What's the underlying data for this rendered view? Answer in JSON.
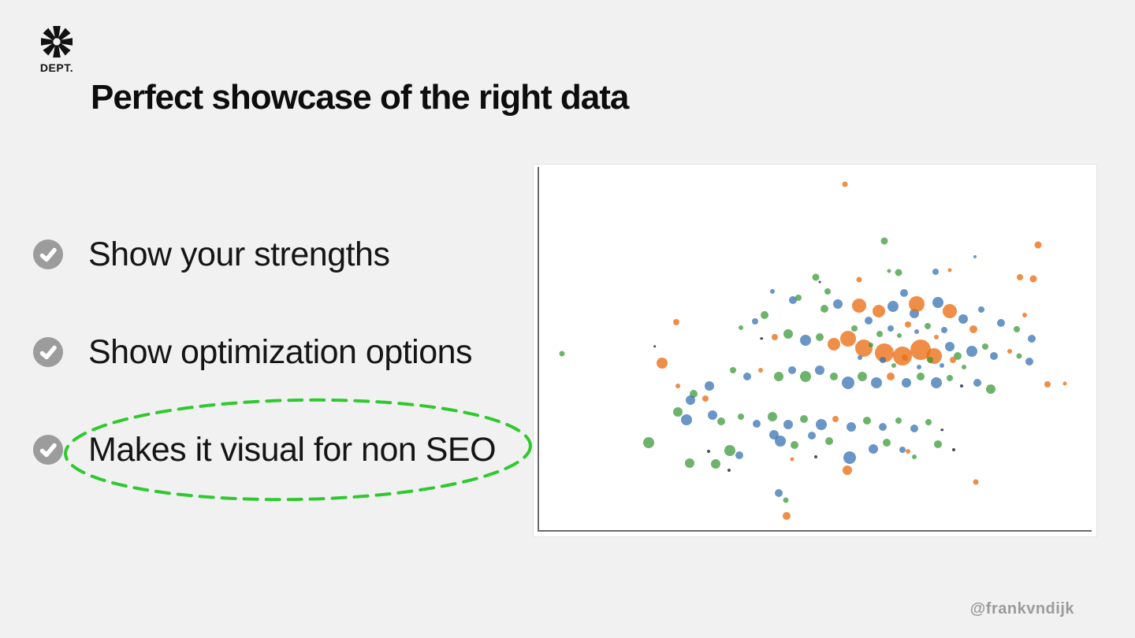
{
  "slide": {
    "background": "#f1f1f2",
    "logo": {
      "brand": "DEPT.",
      "icon": "dept-asterisk-star",
      "color": "#111111"
    },
    "title": "Perfect showcase of the right data",
    "bullets": [
      {
        "label": "Show your strengths",
        "checked": true,
        "highlighted": false
      },
      {
        "label": "Show optimization options",
        "checked": true,
        "highlighted": false
      },
      {
        "label": "Makes it visual for non SEO",
        "checked": true,
        "highlighted": true
      }
    ],
    "check_badge_color": "#9c9c9c",
    "highlight": {
      "shape": "hand-drawn-dashed-ellipse",
      "color": "#2fc92f"
    },
    "footer_handle": "@frankvndijk"
  },
  "chart_data": {
    "type": "scatter",
    "subtype": "bubble",
    "title": "",
    "xlabel": "",
    "ylabel": "",
    "ticks_visible": false,
    "grid": false,
    "frame": "left and bottom spines, white plot background",
    "x_range_pct": [
      0,
      100
    ],
    "y_range_pct": [
      0,
      100
    ],
    "series": [
      {
        "name": "blue",
        "color": "rgba(47,110,176,0.72)"
      },
      {
        "name": "orange",
        "color": "rgba(235,110,20,0.78)"
      },
      {
        "name": "green",
        "color": "rgba(52,150,50,0.72)"
      },
      {
        "name": "dark",
        "color": "rgba(40,45,60,0.85)"
      }
    ],
    "point_format": [
      "x_pct_from_left",
      "y_pct_from_top",
      "radius_px",
      "series_index"
    ],
    "points": [
      [
        55.3,
        5.3,
        3.5,
        1
      ],
      [
        5.0,
        50.8,
        3.5,
        2
      ],
      [
        89.7,
        21.7,
        4.5,
        1
      ],
      [
        86.4,
        30.2,
        4,
        1
      ],
      [
        88.8,
        30.8,
        4.5,
        1
      ],
      [
        78.5,
        24.7,
        2,
        0
      ],
      [
        94.4,
        59.0,
        2.5,
        1
      ],
      [
        66.5,
        77.2,
        3,
        1
      ],
      [
        78.6,
        85.4,
        3.5,
        1
      ],
      [
        45.0,
        94.5,
        5,
        1
      ],
      [
        43.6,
        88.4,
        5,
        0
      ],
      [
        44.8,
        90.3,
        3.5,
        2
      ],
      [
        62.3,
        20.5,
        4.5,
        2
      ],
      [
        20.4,
        74.7,
        7,
        2
      ],
      [
        25.3,
        42.4,
        4,
        1
      ],
      [
        22.8,
        53.4,
        7,
        1
      ],
      [
        21.5,
        48.9,
        1.8,
        3
      ],
      [
        50.1,
        30.4,
        4.5,
        2
      ],
      [
        57.8,
        31.0,
        3.5,
        1
      ],
      [
        64.9,
        29.1,
        4.5,
        2
      ],
      [
        63.1,
        28.5,
        2.5,
        2
      ],
      [
        71.4,
        28.9,
        4,
        0
      ],
      [
        74.0,
        28.3,
        2.5,
        1
      ],
      [
        65.8,
        34.6,
        5,
        0
      ],
      [
        52.2,
        34.2,
        4,
        2
      ],
      [
        42.5,
        34.2,
        3,
        0
      ],
      [
        50.8,
        31.6,
        1.5,
        3
      ],
      [
        46.1,
        36.5,
        5,
        0
      ],
      [
        47.1,
        35.9,
        4,
        2
      ],
      [
        57.8,
        38.0,
        9,
        1
      ],
      [
        61.3,
        39.5,
        8,
        1
      ],
      [
        54.1,
        37.6,
        6,
        0
      ],
      [
        51.7,
        38.8,
        5,
        2
      ],
      [
        63.8,
        38.2,
        7,
        0
      ],
      [
        67.6,
        40.1,
        6,
        0
      ],
      [
        68.0,
        37.6,
        10,
        1
      ],
      [
        71.8,
        37.1,
        7,
        0
      ],
      [
        73.9,
        39.5,
        9,
        1
      ],
      [
        76.3,
        41.6,
        6,
        0
      ],
      [
        78.1,
        44.3,
        5,
        1
      ],
      [
        79.5,
        39.0,
        4,
        0
      ],
      [
        41.1,
        40.5,
        5,
        2
      ],
      [
        39.4,
        42.2,
        4,
        0
      ],
      [
        36.9,
        43.9,
        3,
        2
      ],
      [
        40.5,
        46.8,
        1.8,
        3
      ],
      [
        42.9,
        46.4,
        4,
        1
      ],
      [
        45.3,
        45.6,
        6,
        2
      ],
      [
        48.3,
        47.3,
        7,
        0
      ],
      [
        50.8,
        46.4,
        5,
        2
      ],
      [
        53.4,
        48.3,
        8,
        1
      ],
      [
        55.9,
        46.8,
        10,
        1
      ],
      [
        58.7,
        49.4,
        11,
        1
      ],
      [
        62.3,
        50.6,
        12,
        1
      ],
      [
        65.6,
        51.5,
        12,
        1
      ],
      [
        68.7,
        49.8,
        13,
        1
      ],
      [
        71.2,
        51.5,
        10,
        1
      ],
      [
        73.9,
        48.9,
        6,
        0
      ],
      [
        75.4,
        51.5,
        5,
        2
      ],
      [
        77.9,
        50.2,
        7,
        0
      ],
      [
        80.2,
        48.9,
        4,
        2
      ],
      [
        81.8,
        51.5,
        5,
        0
      ],
      [
        84.6,
        50.2,
        3,
        1
      ],
      [
        86.3,
        51.5,
        3.5,
        2
      ],
      [
        88.5,
        46.8,
        5,
        0
      ],
      [
        85.8,
        44.3,
        4,
        2
      ],
      [
        83.0,
        42.6,
        5,
        0
      ],
      [
        87.2,
        40.5,
        3,
        1
      ],
      [
        88.1,
        53.0,
        5,
        0
      ],
      [
        91.3,
        59.1,
        4,
        1
      ],
      [
        57.0,
        44.0,
        4,
        2
      ],
      [
        59.5,
        42.0,
        5,
        0
      ],
      [
        61.5,
        45.5,
        4,
        2
      ],
      [
        63.5,
        44.0,
        4,
        0
      ],
      [
        65.0,
        46.0,
        3,
        2
      ],
      [
        66.5,
        43.0,
        4,
        1
      ],
      [
        68.0,
        45.0,
        3,
        0
      ],
      [
        70.0,
        43.5,
        4,
        2
      ],
      [
        71.5,
        46.5,
        3,
        1
      ],
      [
        73.0,
        44.5,
        4,
        0
      ],
      [
        60.0,
        48.5,
        3,
        2
      ],
      [
        62.0,
        52.5,
        4,
        0
      ],
      [
        64.0,
        54.0,
        3,
        2
      ],
      [
        66.0,
        52.0,
        4,
        1
      ],
      [
        68.5,
        54.5,
        3,
        0
      ],
      [
        70.5,
        52.5,
        4,
        2
      ],
      [
        72.5,
        54.0,
        3,
        0
      ],
      [
        74.5,
        52.5,
        4,
        1
      ],
      [
        76.5,
        54.5,
        3,
        2
      ],
      [
        58.0,
        52.0,
        3,
        0
      ],
      [
        35.5,
        55.3,
        4,
        2
      ],
      [
        38.0,
        57.0,
        5,
        0
      ],
      [
        40.4,
        55.3,
        3,
        1
      ],
      [
        43.6,
        57.0,
        6,
        2
      ],
      [
        45.9,
        55.3,
        5,
        0
      ],
      [
        48.3,
        57.0,
        7,
        2
      ],
      [
        50.8,
        55.3,
        6,
        0
      ],
      [
        53.4,
        57.0,
        5,
        2
      ],
      [
        55.9,
        58.6,
        8,
        0
      ],
      [
        58.4,
        57.0,
        6,
        2
      ],
      [
        60.9,
        58.6,
        7,
        0
      ],
      [
        63.4,
        57.0,
        5,
        1
      ],
      [
        66.2,
        58.6,
        6,
        0
      ],
      [
        68.7,
        57.0,
        5,
        2
      ],
      [
        71.5,
        58.6,
        7,
        0
      ],
      [
        74.0,
        57.4,
        4,
        2
      ],
      [
        76.0,
        59.5,
        2,
        3
      ],
      [
        78.8,
        58.6,
        5,
        0
      ],
      [
        81.3,
        60.3,
        6,
        2
      ],
      [
        31.3,
        59.5,
        6,
        0
      ],
      [
        28.5,
        61.6,
        5,
        2
      ],
      [
        25.7,
        59.5,
        3,
        1
      ],
      [
        27.9,
        63.3,
        6,
        0
      ],
      [
        30.6,
        62.9,
        4,
        1
      ],
      [
        25.7,
        66.5,
        6,
        2
      ],
      [
        27.2,
        68.6,
        7,
        0
      ],
      [
        31.8,
        67.3,
        6,
        0
      ],
      [
        33.4,
        69.0,
        5,
        2
      ],
      [
        36.9,
        67.9,
        4,
        2
      ],
      [
        39.7,
        69.6,
        5,
        0
      ],
      [
        42.5,
        67.9,
        6,
        2
      ],
      [
        45.3,
        70.0,
        6,
        0
      ],
      [
        48.0,
        68.4,
        5,
        2
      ],
      [
        51.1,
        70.0,
        7,
        0
      ],
      [
        53.6,
        68.4,
        4,
        1
      ],
      [
        56.4,
        70.5,
        6,
        0
      ],
      [
        59.2,
        68.8,
        5,
        2
      ],
      [
        62.0,
        70.5,
        5,
        0
      ],
      [
        64.8,
        68.8,
        4,
        2
      ],
      [
        67.6,
        70.9,
        5,
        0
      ],
      [
        70.1,
        69.2,
        4,
        2
      ],
      [
        72.6,
        71.3,
        1.8,
        3
      ],
      [
        34.9,
        77.0,
        7,
        2
      ],
      [
        36.5,
        78.1,
        5,
        0
      ],
      [
        31.1,
        77.2,
        2,
        3
      ],
      [
        32.4,
        80.6,
        6,
        2
      ],
      [
        34.8,
        82.3,
        2,
        3
      ],
      [
        27.8,
        80.2,
        6,
        2
      ],
      [
        42.7,
        72.6,
        6,
        0
      ],
      [
        43.9,
        74.3,
        7,
        0
      ],
      [
        46.4,
        75.5,
        5,
        2
      ],
      [
        50.1,
        78.5,
        2,
        3
      ],
      [
        45.9,
        79.3,
        2.5,
        1
      ],
      [
        52.5,
        74.3,
        5,
        2
      ],
      [
        49.4,
        72.8,
        5,
        0
      ],
      [
        56.1,
        78.9,
        8,
        0
      ],
      [
        55.7,
        82.3,
        6,
        1
      ],
      [
        60.3,
        76.4,
        6,
        0
      ],
      [
        62.7,
        74.7,
        5,
        2
      ],
      [
        65.5,
        76.8,
        4,
        0
      ],
      [
        67.6,
        78.5,
        3,
        2
      ],
      [
        71.8,
        75.3,
        5,
        2
      ],
      [
        74.6,
        76.8,
        2,
        3
      ]
    ]
  }
}
